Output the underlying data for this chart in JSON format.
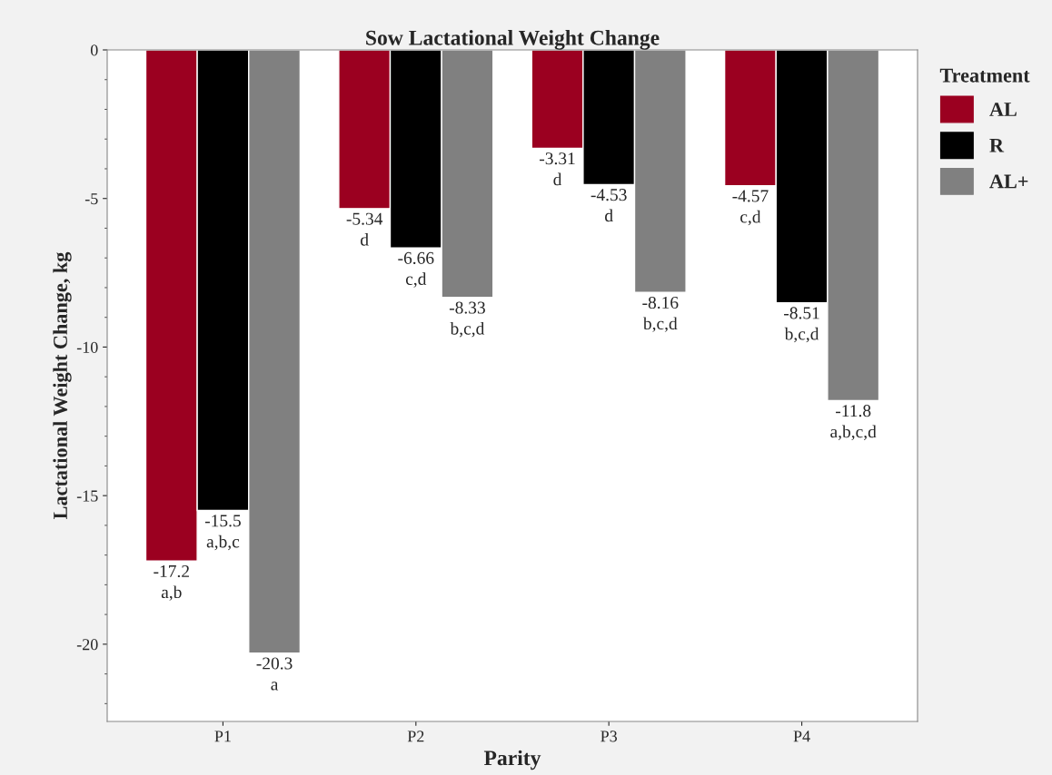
{
  "chart_data": {
    "type": "bar",
    "title": "Sow Lactational Weight Change",
    "xlabel": "Parity",
    "ylabel": "Lactational Weight Change, kg",
    "legend_title": "Treatment",
    "categories": [
      "P1",
      "P2",
      "P3",
      "P4"
    ],
    "series": [
      {
        "name": "AL",
        "color": "#9b0020",
        "values": [
          -17.2,
          -5.34,
          -3.31,
          -4.57
        ],
        "value_labels": [
          "-17.2\na,b",
          "-5.34\nd",
          "-3.31\nd",
          "-4.57\nc,d"
        ]
      },
      {
        "name": "R",
        "color": "#000000",
        "values": [
          -15.5,
          -6.66,
          -4.53,
          -8.51
        ],
        "value_labels": [
          "-15.5\na,b,c",
          "-6.66\nc,d",
          "-4.53\nd",
          "-8.51\nb,c,d"
        ]
      },
      {
        "name": "AL+",
        "color": "#808080",
        "values": [
          -20.3,
          -8.33,
          -8.16,
          -11.8
        ],
        "value_labels": [
          "-20.3\na",
          "-8.33\nb,c,d",
          "-8.16\nb,c,d",
          "-11.8\na,b,c,d"
        ]
      }
    ],
    "ylim": [
      -22.6,
      0
    ],
    "yticks": [
      0,
      -5,
      -10,
      -15,
      -20
    ],
    "grid": false,
    "legend": "right"
  }
}
